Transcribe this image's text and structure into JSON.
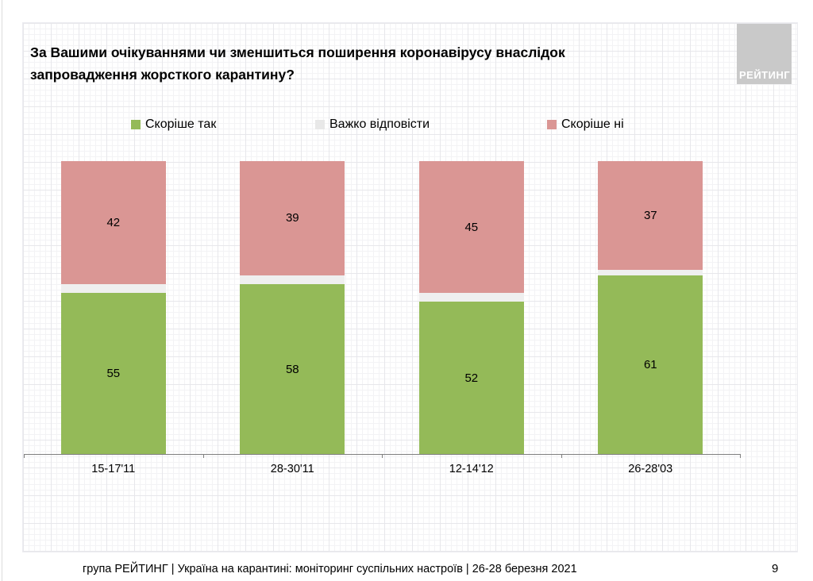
{
  "title": {
    "line1": "За Вашими очікуваннями чи зменшиться поширення коронавірусу внаслідок",
    "line2": "запровадження жорсткого карантину?"
  },
  "logo": {
    "text": "РЕЙТИНГ",
    "background_color": "#c9c9c9",
    "text_color": "#ffffff"
  },
  "legend": [
    {
      "label": "Скоріше так",
      "color": "#94BA58"
    },
    {
      "label": "Важко відповісти",
      "color": "#E8E8E8"
    },
    {
      "label": "Скоріше ні",
      "color": "#DA9694"
    }
  ],
  "footer": {
    "text": "група РЕЙТИНГ | Україна на карантині: моніторинг суспільних настроїв | 26-28 березня 2021"
  },
  "page": {
    "number": "9"
  },
  "chart_data": {
    "type": "bar",
    "stacked": true,
    "orientation": "vertical",
    "title": "За Вашими очікуваннями чи зменшиться поширення коронавірусу внаслідок запровадження жорсткого карантину?",
    "categories": [
      "15-17'11",
      "28-30'11",
      "12-14'12",
      "26-28'03"
    ],
    "series": [
      {
        "name": "Скоріше так",
        "color": "#94BA58",
        "values": [
          55,
          58,
          52,
          61
        ],
        "labels_shown": true
      },
      {
        "name": "Важко відповісти",
        "color": "#EFEFEF",
        "values": [
          3,
          3,
          3,
          2
        ],
        "labels_shown": false
      },
      {
        "name": "Скоріше ні",
        "color": "#DA9694",
        "values": [
          42,
          39,
          45,
          37
        ],
        "labels_shown": true
      }
    ],
    "ylim": [
      0,
      100
    ],
    "value_labels": "centered in segments",
    "legend_position": "top",
    "grid": "graph-paper slide background",
    "xlabel": "",
    "ylabel": ""
  }
}
